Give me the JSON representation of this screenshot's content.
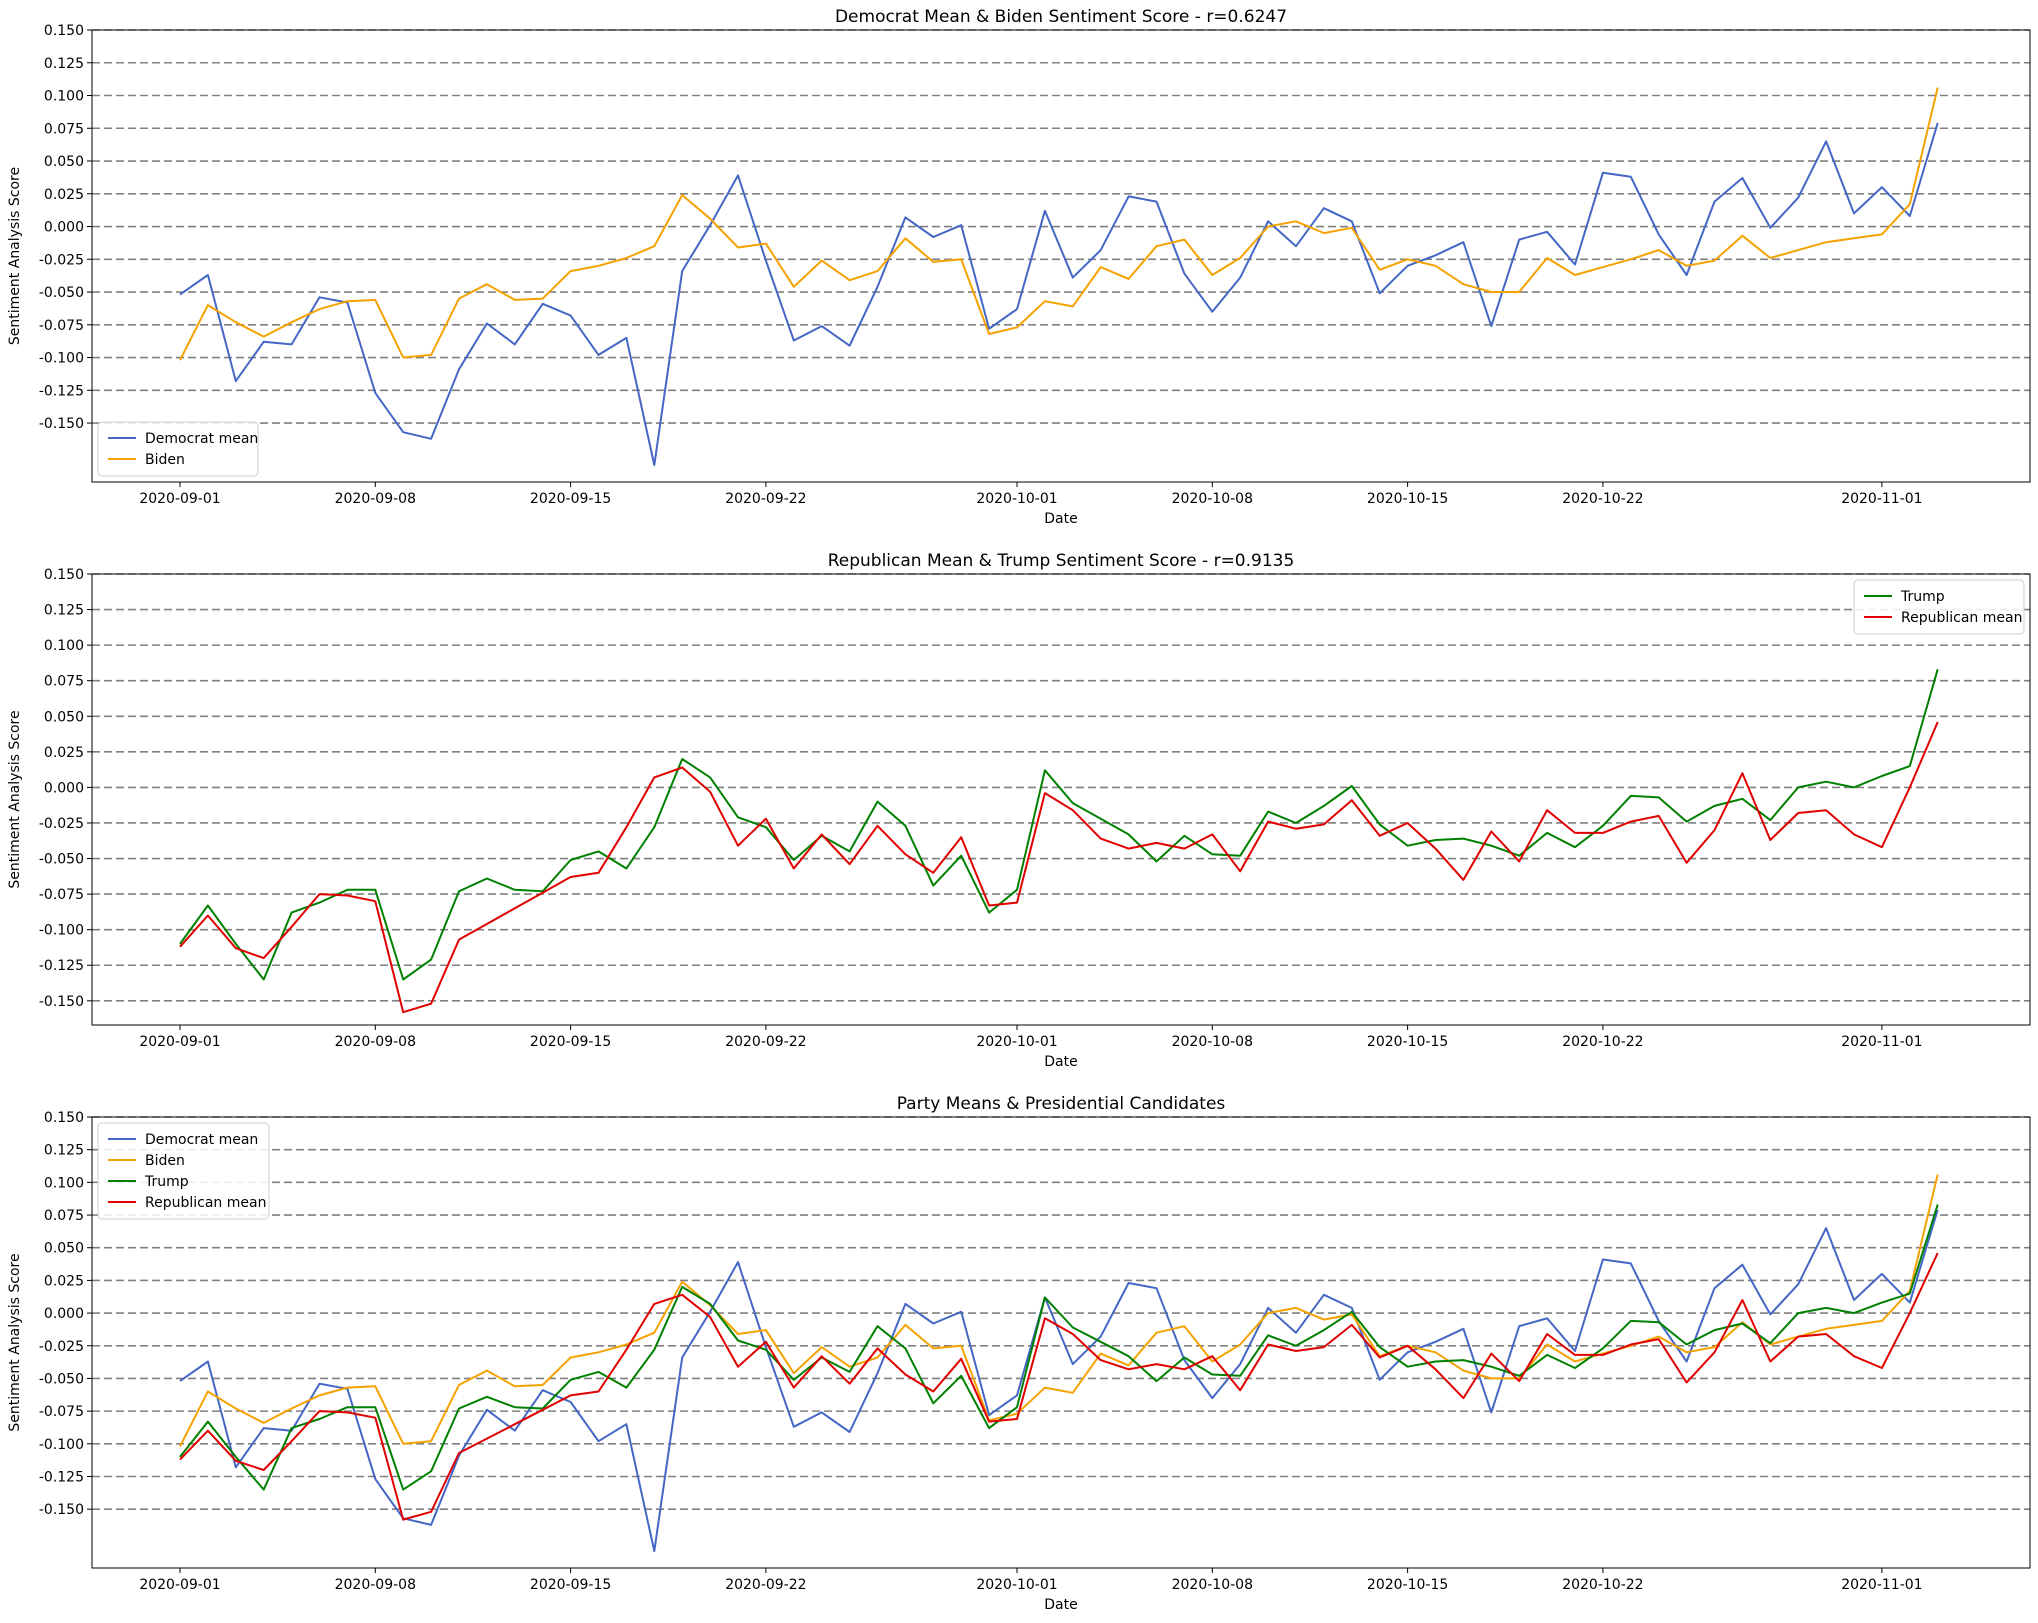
{
  "colors": {
    "democrat_mean": "#4466c4",
    "biden": "#f5a200",
    "trump": "#008000",
    "republican_mean": "#e00000",
    "grid": "#808080"
  },
  "chart_data": [
    {
      "type": "line",
      "title": "Democrat Mean & Biden Sentiment Score - r=0.6247",
      "xlabel": "Date",
      "ylabel": "Sentiment Analysis Score",
      "ylim": [
        -0.195,
        0.15
      ],
      "yticks": [
        "-0.150",
        "-0.125",
        "-0.100",
        "-0.075",
        "-0.050",
        "-0.025",
        "0.000",
        "0.025",
        "0.050",
        "0.075",
        "0.100",
        "0.125",
        "0.150"
      ],
      "xticks": [
        "2020-09-01",
        "2020-09-08",
        "2020-09-15",
        "2020-09-22",
        "2020-10-01",
        "2020-10-08",
        "2020-10-15",
        "2020-10-22",
        "2020-11-01"
      ],
      "grid": "horizontal dashed",
      "legend_position": "lower-left",
      "series": [
        {
          "name": "Democrat mean",
          "color_key": "democrat_mean",
          "values": [
            -0.052,
            -0.037,
            -0.118,
            -0.088,
            -0.09,
            -0.054,
            -0.058,
            -0.127,
            -0.157,
            -0.162,
            -0.109,
            -0.074,
            -0.09,
            -0.059,
            -0.068,
            -0.098,
            -0.085,
            -0.182,
            -0.034,
            0.001,
            0.039,
            -0.026,
            -0.087,
            -0.076,
            -0.091,
            -0.046,
            0.007,
            -0.008,
            0.001,
            -0.078,
            -0.063,
            0.012,
            -0.039,
            -0.018,
            0.023,
            0.019,
            -0.036,
            -0.065,
            -0.039,
            0.004,
            -0.015,
            0.014,
            0.004,
            -0.051,
            -0.03,
            -0.022,
            -0.012,
            -0.076,
            -0.01,
            -0.004,
            -0.029,
            0.041,
            0.038,
            -0.006,
            -0.037,
            0.019,
            0.037,
            -0.001,
            0.022,
            0.065,
            0.01,
            0.03,
            0.008,
            0.079
          ]
        },
        {
          "name": "Biden",
          "color_key": "biden",
          "values": [
            -0.102,
            -0.06,
            -0.073,
            -0.084,
            -0.073,
            -0.063,
            -0.057,
            -0.056,
            -0.1,
            -0.098,
            -0.055,
            -0.044,
            -0.056,
            -0.055,
            -0.034,
            -0.03,
            -0.024,
            -0.015,
            0.024,
            0.006,
            -0.016,
            -0.013,
            -0.046,
            -0.026,
            -0.041,
            -0.034,
            -0.009,
            -0.027,
            -0.025,
            -0.082,
            -0.077,
            -0.057,
            -0.061,
            -0.031,
            -0.04,
            -0.015,
            -0.01,
            -0.037,
            -0.024,
            0.0,
            0.004,
            -0.005,
            -0.001,
            -0.033,
            -0.025,
            -0.03,
            -0.044,
            -0.05,
            -0.05,
            -0.024,
            -0.037,
            -0.031,
            -0.025,
            -0.018,
            -0.03,
            -0.026,
            -0.007,
            -0.024,
            -0.018,
            -0.012,
            -0.009,
            -0.006,
            0.017,
            0.106
          ]
        }
      ]
    },
    {
      "type": "line",
      "title": "Republican Mean & Trump Sentiment Score - r=0.9135",
      "xlabel": "Date",
      "ylabel": "Sentiment Analysis Score",
      "ylim": [
        -0.167,
        0.15
      ],
      "yticks": [
        "-0.150",
        "-0.125",
        "-0.100",
        "-0.075",
        "-0.050",
        "-0.025",
        "0.000",
        "0.025",
        "0.050",
        "0.075",
        "0.100",
        "0.125",
        "0.150"
      ],
      "xticks": [
        "2020-09-01",
        "2020-09-08",
        "2020-09-15",
        "2020-09-22",
        "2020-10-01",
        "2020-10-08",
        "2020-10-15",
        "2020-10-22",
        "2020-11-01"
      ],
      "grid": "horizontal dashed",
      "legend_position": "upper-right",
      "series": [
        {
          "name": "Trump",
          "color_key": "trump",
          "values": [
            -0.11,
            -0.083,
            -0.11,
            -0.135,
            -0.088,
            -0.081,
            -0.072,
            -0.072,
            -0.135,
            -0.121,
            -0.073,
            -0.064,
            -0.072,
            -0.073,
            -0.051,
            -0.045,
            -0.057,
            -0.028,
            0.02,
            0.007,
            -0.021,
            -0.028,
            -0.051,
            -0.034,
            -0.045,
            -0.01,
            -0.027,
            -0.069,
            -0.048,
            -0.088,
            -0.072,
            0.012,
            -0.011,
            -0.022,
            -0.033,
            -0.052,
            -0.034,
            -0.047,
            -0.048,
            -0.017,
            -0.025,
            -0.013,
            0.001,
            -0.026,
            -0.041,
            -0.037,
            -0.036,
            -0.041,
            -0.048,
            -0.032,
            -0.042,
            -0.027,
            -0.006,
            -0.007,
            -0.024,
            -0.013,
            -0.008,
            -0.023,
            0.0,
            0.004,
            0.0,
            0.008,
            0.015,
            0.083
          ]
        },
        {
          "name": "Republican mean",
          "color_key": "republican_mean",
          "values": [
            -0.112,
            -0.09,
            -0.113,
            -0.12,
            -0.098,
            -0.075,
            -0.076,
            -0.08,
            -0.158,
            -0.152,
            -0.107,
            -0.096,
            -0.085,
            -0.074,
            -0.063,
            -0.06,
            -0.028,
            0.007,
            0.014,
            -0.003,
            -0.041,
            -0.022,
            -0.057,
            -0.033,
            -0.054,
            -0.027,
            -0.047,
            -0.06,
            -0.035,
            -0.083,
            -0.081,
            -0.004,
            -0.016,
            -0.036,
            -0.043,
            -0.039,
            -0.043,
            -0.033,
            -0.059,
            -0.024,
            -0.029,
            -0.026,
            -0.009,
            -0.034,
            -0.025,
            -0.043,
            -0.065,
            -0.031,
            -0.052,
            -0.016,
            -0.032,
            -0.032,
            -0.024,
            -0.02,
            -0.053,
            -0.03,
            0.01,
            -0.037,
            -0.018,
            -0.016,
            -0.033,
            -0.042,
            0.0,
            0.046
          ]
        }
      ]
    },
    {
      "type": "line",
      "title": "Party Means & Presidential Candidates",
      "xlabel": "Date",
      "ylabel": "Sentiment Analysis Score",
      "ylim": [
        -0.195,
        0.15
      ],
      "yticks": [
        "-0.150",
        "-0.125",
        "-0.100",
        "-0.075",
        "-0.050",
        "-0.025",
        "0.000",
        "0.025",
        "0.050",
        "0.075",
        "0.100",
        "0.125",
        "0.150"
      ],
      "xticks": [
        "2020-09-01",
        "2020-09-08",
        "2020-09-15",
        "2020-09-22",
        "2020-10-01",
        "2020-10-08",
        "2020-10-15",
        "2020-10-22",
        "2020-11-01"
      ],
      "grid": "horizontal dashed",
      "legend_position": "upper-left",
      "series": [
        {
          "name": "Democrat mean",
          "color_key": "democrat_mean",
          "ref": "0.0"
        },
        {
          "name": "Biden",
          "color_key": "biden",
          "ref": "0.1"
        },
        {
          "name": "Trump",
          "color_key": "trump",
          "ref": "1.0"
        },
        {
          "name": "Republican mean",
          "color_key": "republican_mean",
          "ref": "1.1"
        }
      ]
    }
  ]
}
